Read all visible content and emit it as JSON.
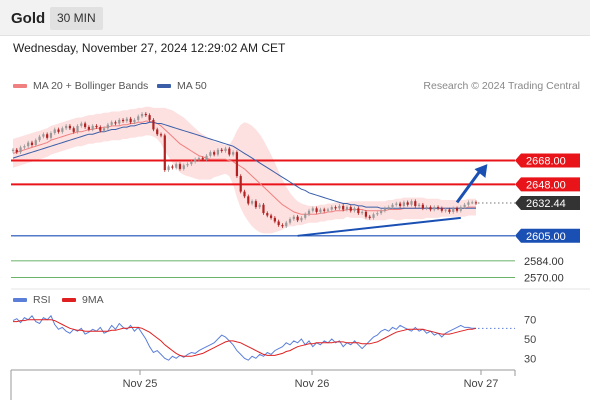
{
  "header": {
    "title": "Gold",
    "timeframe": "30 MIN"
  },
  "datetime": "Wednesday, November 27, 2024 12:29:02 AM CET",
  "credit": "Research © 2024 Trading Central",
  "legend": {
    "ma20": "MA 20 + Bollinger Bands",
    "ma50": "MA 50",
    "rsi": "RSI",
    "ma9": "9MA"
  },
  "colors": {
    "resistance": "#e8141a",
    "support": "#1a4fb4",
    "target_green": "#3a9a3a",
    "bollinger_fill": "#fde0e0",
    "ma20": "#f08080",
    "ma50": "#3a5fa8",
    "rsi": "#5b7fd8",
    "rsi_ma": "#e02020",
    "candle_up": "#999999",
    "candle_down": "#b22020",
    "last_price": "#333333"
  },
  "chart_data": [
    {
      "type": "candlestick",
      "ylim": [
        2563,
        2722
      ],
      "x_ticks": [
        "Nov 25",
        "Nov 26",
        "Nov 27"
      ],
      "levels": [
        {
          "label": "2668.00",
          "value": 2668.0,
          "kind": "resistance"
        },
        {
          "label": "2648.00",
          "value": 2648.0,
          "kind": "resistance"
        },
        {
          "label": "2632.44",
          "value": 2632.44,
          "kind": "last"
        },
        {
          "label": "2605.00",
          "value": 2605.0,
          "kind": "support"
        },
        {
          "label": "2584.00",
          "value": 2584.0,
          "kind": "target"
        },
        {
          "label": "2570.00",
          "value": 2570.0,
          "kind": "target"
        }
      ],
      "close": [
        2677,
        2675,
        2679,
        2680,
        2683,
        2681,
        2685,
        2688,
        2690,
        2687,
        2691,
        2694,
        2692,
        2695,
        2697,
        2695,
        2692,
        2697,
        2699,
        2696,
        2694,
        2697,
        2696,
        2693,
        2695,
        2698,
        2700,
        2699,
        2702,
        2701,
        2703,
        2700,
        2702,
        2705,
        2707,
        2706,
        2702,
        2694,
        2690,
        2689,
        2660,
        2663,
        2662,
        2665,
        2661,
        2664,
        2665,
        2667,
        2669,
        2670,
        2669,
        2672,
        2675,
        2673,
        2677,
        2676,
        2678,
        2673,
        2675,
        2655,
        2642,
        2638,
        2632,
        2634,
        2629,
        2631,
        2624,
        2622,
        2620,
        2617,
        2614,
        2613,
        2616,
        2619,
        2621,
        2618,
        2620,
        2623,
        2626,
        2628,
        2625,
        2627,
        2626,
        2627,
        2629,
        2628,
        2630,
        2627,
        2629,
        2626,
        2628,
        2624,
        2625,
        2621,
        2620,
        2623,
        2624,
        2626,
        2628,
        2629,
        2631,
        2632,
        2630,
        2633,
        2631,
        2634,
        2630,
        2631,
        2628,
        2629,
        2627,
        2629,
        2628,
        2626,
        2627,
        2625,
        2628,
        2626,
        2629,
        2631,
        2633,
        2633,
        2632.44
      ],
      "ma20": [
        2674,
        2675,
        2676,
        2677,
        2678,
        2679,
        2680,
        2681,
        2682,
        2683,
        2685,
        2686,
        2687,
        2688,
        2689,
        2690,
        2691,
        2692,
        2692,
        2693,
        2694,
        2694,
        2695,
        2695,
        2696,
        2696,
        2697,
        2697,
        2697,
        2698,
        2698,
        2699,
        2699,
        2700,
        2700,
        2701,
        2701,
        2700,
        2699,
        2697,
        2694,
        2691,
        2688,
        2685,
        2682,
        2680,
        2678,
        2676,
        2674,
        2672,
        2671,
        2670,
        2669,
        2669,
        2669,
        2669,
        2669,
        2668,
        2667,
        2665,
        2663,
        2661,
        2658,
        2655,
        2652,
        2649,
        2646,
        2643,
        2640,
        2637,
        2634,
        2631,
        2629,
        2627,
        2625,
        2624,
        2623,
        2623,
        2623,
        2623,
        2623,
        2624,
        2624,
        2625,
        2625,
        2626,
        2626,
        2626,
        2627,
        2627,
        2627,
        2627,
        2627,
        2626,
        2626,
        2626,
        2626,
        2626,
        2626,
        2627,
        2627,
        2627,
        2627,
        2628,
        2628,
        2628,
        2628,
        2628,
        2628,
        2628,
        2628,
        2628,
        2628,
        2628,
        2628,
        2628,
        2628,
        2628,
        2628,
        2628,
        2629,
        2629,
        2629
      ],
      "bb_upper": [
        2686,
        2687,
        2688,
        2689,
        2690,
        2691,
        2692,
        2693,
        2694,
        2695,
        2697,
        2698,
        2699,
        2700,
        2701,
        2702,
        2703,
        2704,
        2704,
        2705,
        2706,
        2706,
        2707,
        2707,
        2708,
        2708,
        2709,
        2709,
        2709,
        2710,
        2710,
        2711,
        2711,
        2712,
        2712,
        2713,
        2713,
        2712,
        2712,
        2712,
        2712,
        2711,
        2710,
        2708,
        2706,
        2704,
        2701,
        2698,
        2695,
        2692,
        2690,
        2688,
        2686,
        2684,
        2683,
        2682,
        2681,
        2681,
        2686,
        2693,
        2698,
        2700,
        2699,
        2697,
        2694,
        2690,
        2685,
        2679,
        2673,
        2666,
        2659,
        2652,
        2646,
        2641,
        2637,
        2634,
        2632,
        2631,
        2630,
        2630,
        2630,
        2631,
        2631,
        2632,
        2632,
        2633,
        2633,
        2633,
        2633,
        2634,
        2634,
        2634,
        2634,
        2634,
        2634,
        2634,
        2634,
        2634,
        2634,
        2635,
        2635,
        2636,
        2636,
        2637,
        2637,
        2637,
        2637,
        2637,
        2637,
        2636,
        2636,
        2636,
        2636,
        2635,
        2635,
        2635,
        2635,
        2635,
        2635,
        2635,
        2636,
        2636,
        2636
      ],
      "bb_lower": [
        2662,
        2663,
        2664,
        2665,
        2666,
        2667,
        2668,
        2669,
        2670,
        2671,
        2673,
        2674,
        2675,
        2676,
        2677,
        2678,
        2679,
        2680,
        2680,
        2681,
        2682,
        2682,
        2683,
        2683,
        2684,
        2684,
        2685,
        2685,
        2685,
        2686,
        2686,
        2687,
        2687,
        2688,
        2688,
        2689,
        2689,
        2688,
        2686,
        2682,
        2676,
        2671,
        2666,
        2662,
        2658,
        2656,
        2655,
        2654,
        2653,
        2652,
        2652,
        2652,
        2652,
        2654,
        2655,
        2656,
        2657,
        2655,
        2648,
        2637,
        2628,
        2622,
        2617,
        2613,
        2610,
        2608,
        2607,
        2607,
        2607,
        2608,
        2609,
        2610,
        2612,
        2613,
        2613,
        2614,
        2614,
        2615,
        2616,
        2616,
        2616,
        2617,
        2617,
        2618,
        2618,
        2619,
        2619,
        2619,
        2621,
        2620,
        2620,
        2620,
        2620,
        2618,
        2618,
        2618,
        2618,
        2618,
        2618,
        2619,
        2619,
        2618,
        2618,
        2619,
        2619,
        2619,
        2619,
        2619,
        2619,
        2620,
        2620,
        2620,
        2620,
        2621,
        2621,
        2621,
        2621,
        2621,
        2621,
        2621,
        2622,
        2622,
        2622
      ],
      "ma50": [
        2670,
        2671,
        2672,
        2673,
        2674,
        2675,
        2676,
        2677,
        2678,
        2679,
        2680,
        2681,
        2682,
        2683,
        2684,
        2685,
        2686,
        2687,
        2688,
        2689,
        2690,
        2690,
        2691,
        2692,
        2692,
        2693,
        2694,
        2694,
        2695,
        2696,
        2696,
        2697,
        2697,
        2698,
        2699,
        2699,
        2700,
        2700,
        2699,
        2699,
        2698,
        2697,
        2696,
        2695,
        2694,
        2693,
        2692,
        2691,
        2690,
        2689,
        2688,
        2687,
        2686,
        2685,
        2684,
        2683,
        2682,
        2681,
        2680,
        2678,
        2676,
        2674,
        2672,
        2670,
        2668,
        2666,
        2664,
        2662,
        2660,
        2658,
        2656,
        2654,
        2652,
        2650,
        2648,
        2646,
        2644,
        2643,
        2641,
        2640,
        2639,
        2638,
        2637,
        2636,
        2635,
        2634,
        2633,
        2632,
        2632,
        2631,
        2631,
        2630,
        2630,
        2629,
        2629,
        2629,
        2629,
        2628,
        2628,
        2628,
        2628,
        2628,
        2628,
        2628,
        2628,
        2628,
        2628,
        2628,
        2628,
        2628,
        2628,
        2628,
        2628,
        2628,
        2628,
        2628,
        2628,
        2628,
        2628,
        2628,
        2628,
        2628,
        2628
      ],
      "trendline": [
        {
          "index": 75,
          "value": 2605
        },
        {
          "index": 118,
          "value": 2620
        }
      ],
      "projection": [
        {
          "index": 117,
          "value": 2633
        },
        {
          "index": 125,
          "value": 2665
        }
      ]
    },
    {
      "type": "line",
      "ylim": [
        22,
        80
      ],
      "ticks": [
        "70",
        "50",
        "30"
      ],
      "series": [
        {
          "name": "RSI",
          "values": [
            69,
            71,
            67,
            72,
            70,
            74,
            68,
            66,
            72,
            70,
            74,
            65,
            60,
            62,
            58,
            56,
            60,
            58,
            61,
            55,
            57,
            60,
            58,
            62,
            56,
            58,
            64,
            60,
            66,
            62,
            60,
            64,
            58,
            62,
            56,
            50,
            42,
            36,
            38,
            34,
            30,
            28,
            32,
            30,
            33,
            31,
            34,
            36,
            35,
            38,
            40,
            42,
            44,
            46,
            50,
            54,
            52,
            48,
            44,
            38,
            34,
            30,
            28,
            32,
            30,
            34,
            32,
            36,
            34,
            38,
            40,
            42,
            46,
            44,
            48,
            46,
            50,
            44,
            48,
            42,
            46,
            44,
            48,
            46,
            50,
            46,
            48,
            42,
            46,
            44,
            48,
            44,
            40,
            44,
            48,
            52,
            54,
            58,
            60,
            58,
            62,
            60,
            64,
            62,
            60,
            58,
            62,
            58,
            60,
            56,
            58,
            54,
            56,
            52,
            56,
            58,
            60,
            62,
            64,
            62,
            62,
            61,
            61
          ]
        },
        {
          "name": "9MA",
          "values": [
            68,
            68,
            69,
            69,
            70,
            70,
            70,
            70,
            70,
            70,
            70,
            69,
            67,
            65,
            63,
            61,
            60,
            59,
            59,
            58,
            58,
            58,
            58,
            58,
            58,
            58,
            59,
            59,
            60,
            61,
            61,
            62,
            62,
            62,
            61,
            59,
            57,
            54,
            51,
            48,
            44,
            41,
            38,
            35,
            33,
            32,
            32,
            32,
            33,
            34,
            35,
            37,
            39,
            41,
            43,
            45,
            47,
            48,
            48,
            47,
            46,
            44,
            42,
            40,
            38,
            36,
            34,
            33,
            33,
            33,
            34,
            35,
            37,
            38,
            40,
            42,
            43,
            44,
            45,
            45,
            46,
            46,
            46,
            46,
            46,
            47,
            47,
            47,
            46,
            46,
            46,
            46,
            45,
            45,
            45,
            46,
            47,
            49,
            51,
            53,
            55,
            57,
            58,
            59,
            60,
            60,
            60,
            60,
            60,
            59,
            58,
            57,
            56,
            55,
            55,
            55,
            56,
            57,
            58,
            59,
            60,
            60,
            61
          ]
        }
      ],
      "rsi_last": 61
    }
  ]
}
